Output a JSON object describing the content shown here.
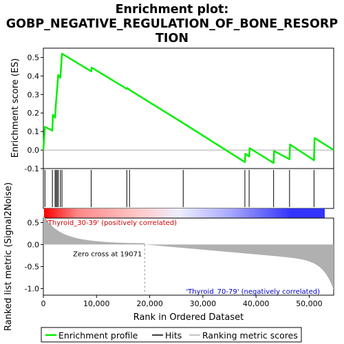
{
  "chart_data": {
    "type": "line",
    "title_lines": [
      "Enrichment plot:",
      "GOBP_NEGATIVE_REGULATION_OF_BONE_RESORP",
      "TION"
    ],
    "top_panel": {
      "ylabel": "Enrichment score (ES)",
      "ylim": [
        -0.1,
        0.55
      ],
      "yticks": [
        -0.1,
        0.0,
        0.1,
        0.2,
        0.3,
        0.4,
        0.5
      ],
      "ytick_labels": [
        "-0.1",
        "0.0",
        "0.1",
        "0.2",
        "0.3",
        "0.4",
        "0.5"
      ],
      "series": [
        {
          "name": "Enrichment profile",
          "color": "#00ee00",
          "x": [
            0,
            300,
            1700,
            1800,
            2200,
            2400,
            2600,
            2800,
            3200,
            3500,
            9000,
            9100,
            15700,
            15800,
            16200,
            26300,
            37900,
            38000,
            38700,
            38800,
            43300,
            43400,
            46300,
            46400,
            50900,
            51000,
            54600
          ],
          "y": [
            0.0,
            0.125,
            0.105,
            0.19,
            0.175,
            0.26,
            0.33,
            0.405,
            0.39,
            0.52,
            0.425,
            0.445,
            0.33,
            0.335,
            0.325,
            0.145,
            -0.065,
            -0.02,
            -0.035,
            0.01,
            -0.07,
            -0.005,
            -0.05,
            0.03,
            -0.055,
            0.065,
            0.0
          ]
        }
      ]
    },
    "hits": {
      "label": "Hits",
      "x": [
        300,
        1700,
        2200,
        2400,
        2600,
        2800,
        3200,
        3500,
        9000,
        15700,
        16200,
        26300,
        37900,
        38700,
        43300,
        46300,
        50900
      ]
    },
    "heat_bar": {
      "colors": [
        "#ff0000",
        "#ff8888",
        "#ffcccc",
        "#eeeeff",
        "#aaaaff",
        "#3333ff"
      ]
    },
    "bottom_panel": {
      "ylabel": "Ranked list metric (Signal2Noise)",
      "ylim": [
        -1.15,
        0.6
      ],
      "yticks": [
        -1.0,
        -0.5,
        0.0,
        0.5
      ],
      "ytick_labels": [
        "-1.0",
        "-0.5",
        "0.0",
        "0.5"
      ],
      "fill_color": "#b0b0b0",
      "annotation_pos": "'Thyroid_30-39' (positively correlated)",
      "annotation_neg": "'Thyroid_70-79' (negatively correlated)",
      "zero_cross_label": "Zero cross at 19071",
      "zero_cross_x": 19071
    },
    "x_axis": {
      "xlabel": "Rank in Ordered Dataset",
      "xlim": [
        0,
        54600
      ],
      "xticks": [
        0,
        10000,
        20000,
        30000,
        40000,
        50000
      ],
      "xtick_labels": [
        "0",
        "10,000",
        "20,000",
        "30,000",
        "40,000",
        "50,000"
      ]
    },
    "legend": {
      "position": "bottom",
      "items": [
        "Enrichment profile",
        "Hits",
        "Ranking metric scores"
      ]
    }
  }
}
